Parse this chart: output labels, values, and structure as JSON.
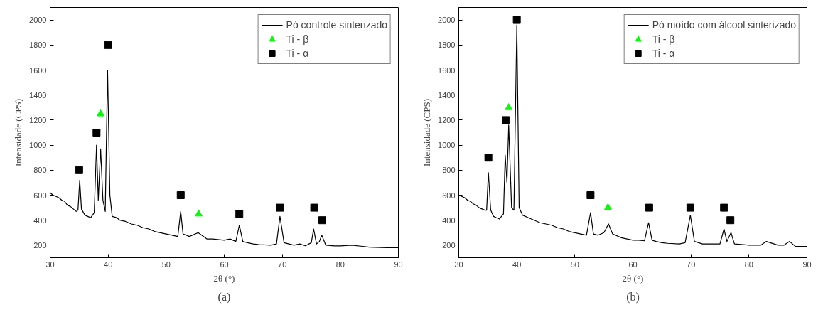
{
  "chart_data": [
    {
      "type": "line",
      "xlabel": "2θ (°)",
      "ylabel": "Intensidade (CPS)",
      "annotations": [
        "(a)"
      ],
      "xlim": [
        30,
        90
      ],
      "ylim": [
        100,
        2100
      ],
      "xticks": [
        30,
        40,
        50,
        60,
        70,
        80,
        90
      ],
      "yticks": [
        200,
        400,
        600,
        800,
        1000,
        1200,
        1400,
        1600,
        1800,
        2000
      ],
      "legend": "top right",
      "grid": false,
      "series": [
        {
          "name": "Pó controle sinterizado",
          "color": "#000000",
          "marker": "none",
          "x": [
            30,
            30.5,
            31,
            31.5,
            32,
            32.5,
            33,
            33.5,
            34,
            34.5,
            34.8,
            35.1,
            35.4,
            36,
            36.5,
            37,
            37.6,
            38.0,
            38.3,
            38.7,
            39.1,
            39.5,
            39.9,
            40.3,
            40.7,
            41.5,
            42,
            43,
            44,
            45,
            46,
            47,
            48,
            49,
            50,
            51,
            52,
            52.5,
            52.9,
            54,
            55.5,
            57,
            58,
            60,
            61,
            62,
            62.6,
            63.2,
            64,
            65,
            66,
            68,
            69,
            69.6,
            70.3,
            72,
            73,
            74,
            75,
            75.4,
            75.9,
            76.4,
            76.8,
            77.5,
            79,
            80,
            82,
            85,
            88,
            90
          ],
          "values": [
            620,
            600,
            590,
            580,
            560,
            550,
            520,
            510,
            490,
            470,
            480,
            720,
            490,
            440,
            430,
            420,
            460,
            1000,
            560,
            970,
            560,
            470,
            1600,
            600,
            430,
            420,
            400,
            390,
            370,
            360,
            340,
            330,
            310,
            300,
            290,
            280,
            270,
            470,
            290,
            270,
            300,
            250,
            250,
            240,
            250,
            230,
            360,
            230,
            220,
            210,
            205,
            200,
            210,
            430,
            220,
            200,
            210,
            195,
            220,
            330,
            210,
            230,
            280,
            200,
            195,
            195,
            200,
            185,
            180,
            180
          ]
        },
        {
          "name": "Ti - β",
          "type": "scatter",
          "color": "#00ff00",
          "marker": "triangle",
          "x": [
            38.7,
            55.6
          ],
          "values": [
            1250,
            450
          ]
        },
        {
          "name": "Ti - α",
          "type": "scatter",
          "color": "#000000",
          "marker": "square",
          "x": [
            35,
            38,
            40,
            52.5,
            62.6,
            69.6,
            75.5,
            76.9
          ],
          "values": [
            800,
            1100,
            1800,
            600,
            450,
            500,
            500,
            400
          ]
        }
      ]
    },
    {
      "type": "line",
      "xlabel": "2θ (°)",
      "ylabel": "Intensidade (CPS)",
      "annotations": [
        "(b)"
      ],
      "xlim": [
        30,
        90
      ],
      "ylim": [
        100,
        2100
      ],
      "xticks": [
        30,
        40,
        50,
        60,
        70,
        80,
        90
      ],
      "yticks": [
        200,
        400,
        600,
        800,
        1000,
        1200,
        1400,
        1600,
        1800,
        2000
      ],
      "legend": "top right",
      "grid": false,
      "series": [
        {
          "name": "Pó moído com álcool sinterizado",
          "color": "#000000",
          "marker": "none",
          "x": [
            30,
            30.5,
            31,
            31.5,
            32,
            32.5,
            33,
            33.5,
            34,
            34.5,
            34.8,
            35.1,
            35.5,
            36,
            36.5,
            37,
            37.7,
            38.0,
            38.3,
            38.6,
            39.1,
            39.5,
            40.0,
            40.4,
            41,
            42,
            43,
            44,
            45,
            46,
            47,
            48,
            49,
            50,
            51,
            52,
            52.7,
            53.2,
            54,
            55,
            55.8,
            56.5,
            58,
            60,
            61,
            62,
            62.7,
            63.3,
            64,
            65,
            66,
            68,
            69,
            69.9,
            70.6,
            72,
            73,
            75,
            75.7,
            76.2,
            76.9,
            77.5,
            79,
            80,
            82,
            83,
            85,
            86,
            87,
            88,
            90
          ],
          "values": [
            600,
            590,
            580,
            560,
            550,
            530,
            520,
            500,
            490,
            480,
            480,
            780,
            480,
            430,
            420,
            410,
            450,
            920,
            700,
            1160,
            500,
            480,
            1960,
            500,
            440,
            420,
            400,
            380,
            370,
            360,
            340,
            330,
            310,
            300,
            290,
            280,
            460,
            290,
            280,
            300,
            370,
            290,
            260,
            240,
            240,
            235,
            380,
            240,
            230,
            220,
            215,
            210,
            220,
            440,
            230,
            210,
            210,
            210,
            330,
            230,
            300,
            210,
            205,
            200,
            200,
            230,
            200,
            200,
            230,
            190,
            190
          ]
        },
        {
          "name": "Ti - β",
          "type": "scatter",
          "color": "#00ff00",
          "marker": "triangle",
          "x": [
            38.6,
            55.7
          ],
          "values": [
            1300,
            500
          ]
        },
        {
          "name": "Ti - α",
          "type": "scatter",
          "color": "#000000",
          "marker": "square",
          "x": [
            35.1,
            38.1,
            40,
            52.7,
            62.8,
            69.9,
            75.7,
            76.8
          ],
          "values": [
            900,
            1200,
            2000,
            600,
            500,
            500,
            500,
            400
          ]
        }
      ]
    }
  ]
}
